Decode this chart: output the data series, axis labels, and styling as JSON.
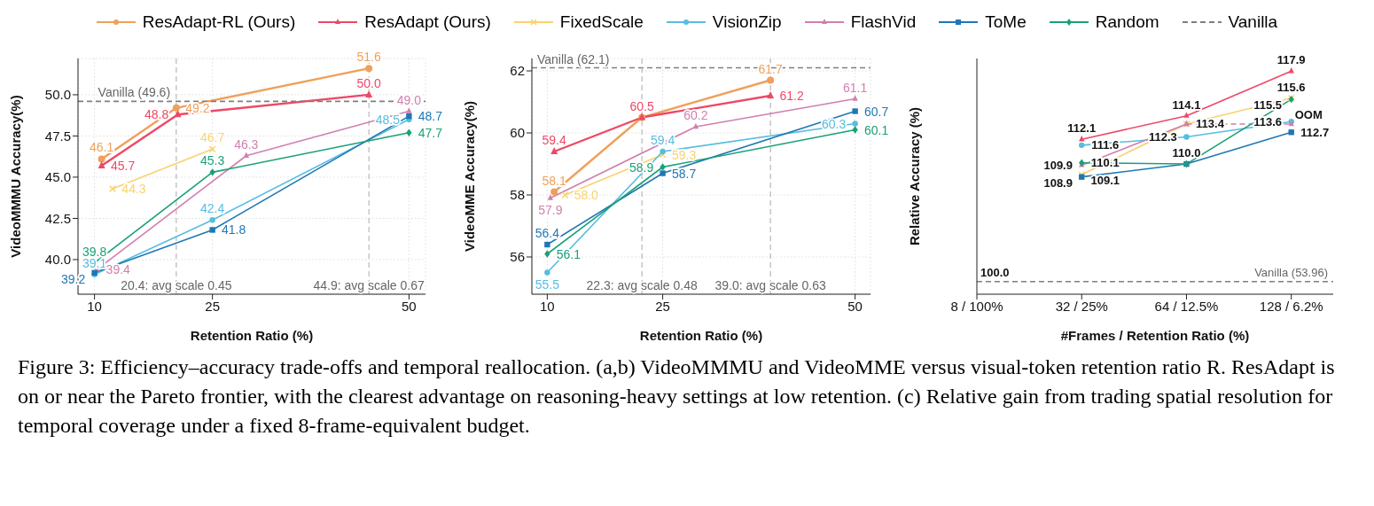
{
  "chart_data": [
    {
      "type": "line",
      "xlabel": "Retention Ratio (%)",
      "ylabel": "VideoMMMU Accuracy(%)",
      "xlim": [
        7.9,
        52.1
      ],
      "ylim": [
        37.9,
        52.2
      ],
      "xticks": [
        10,
        25,
        50
      ],
      "yticks": [
        {
          "value": 40,
          "label": "40.0"
        },
        42.5,
        {
          "value": 45,
          "label": "45.0"
        },
        47.5,
        {
          "value": 50,
          "label": "50.0"
        }
      ],
      "grid": true,
      "legend": "top",
      "series": [
        {
          "name": "ResAdapt-RL (Ours)",
          "color": "#f0a05a",
          "marker": "circle",
          "x": [
            10.9,
            20.4,
            44.9
          ],
          "values": [
            46.1,
            49.2,
            51.6
          ],
          "value_labels": [
            "46.1",
            "49.2",
            "51.6"
          ]
        },
        {
          "name": "ResAdapt (Ours)",
          "color": "#ee4866",
          "marker": "triangle",
          "x": [
            10.9,
            20.6,
            44.9
          ],
          "values": [
            45.7,
            48.8,
            50.0
          ],
          "value_labels": [
            "45.7",
            "48.8",
            "50.0"
          ]
        },
        {
          "name": "FixedScale",
          "color": "#f7d26e",
          "marker": "cross",
          "x": [
            12.3,
            25
          ],
          "values": [
            44.3,
            46.7
          ],
          "value_labels": [
            "44.3",
            "46.7"
          ]
        },
        {
          "name": "VisionZip",
          "color": "#56bde0",
          "marker": "circle",
          "x": [
            10,
            25,
            50
          ],
          "values": [
            39.1,
            42.4,
            48.5
          ],
          "value_labels": [
            "39.1",
            "42.4",
            "48.5"
          ]
        },
        {
          "name": "FlashVid",
          "color": "#d17fb0",
          "marker": "triangle",
          "x": [
            10.3,
            29.3,
            50
          ],
          "values": [
            39.4,
            46.3,
            49.0
          ],
          "value_labels": [
            "39.4",
            "46.3",
            "49.0"
          ]
        },
        {
          "name": "ToMe",
          "color": "#1f77b4",
          "marker": "square",
          "x": [
            10,
            25,
            50
          ],
          "values": [
            39.2,
            41.8,
            48.7
          ],
          "value_labels": [
            "39.2",
            "41.8",
            "48.7"
          ]
        },
        {
          "name": "Random",
          "color": "#1aa079",
          "marker": "diamond",
          "x": [
            10,
            25,
            50
          ],
          "values": [
            39.8,
            45.3,
            47.7
          ],
          "value_labels": [
            "39.8",
            "45.3",
            "47.7"
          ]
        },
        {
          "name": "Vanilla",
          "color": "#7f7f7f",
          "marker": "none",
          "line_style": "dashed",
          "x": [
            7.9,
            52.1
          ],
          "values": [
            49.6,
            49.6
          ]
        }
      ],
      "ref_lines": [
        {
          "axis": "x",
          "value": 20.4,
          "label": "20.4: avg scale 0.45",
          "color": "#aaaaaa",
          "line_style": "dashed"
        },
        {
          "axis": "x",
          "value": 44.9,
          "label": "44.9: avg scale 0.67",
          "color": "#aaaaaa",
          "line_style": "dashed"
        }
      ],
      "annotations": [
        {
          "text": "Vanilla (49.6)",
          "x": 10,
          "y": 49.6
        }
      ]
    },
    {
      "type": "line",
      "xlabel": "Retention Ratio (%)",
      "ylabel": "VideoMME Accuracy(%)",
      "xlim": [
        8,
        52
      ],
      "ylim": [
        54.8,
        62.4
      ],
      "xticks": [
        10,
        25,
        50
      ],
      "yticks": [
        56,
        58,
        60,
        62
      ],
      "grid": true,
      "series": [
        {
          "color": "#f0a05a",
          "marker": "circle",
          "x": [
            10.9,
            22.3,
            39.0
          ],
          "values": [
            58.1,
            60.5,
            61.7
          ],
          "value_labels": [
            "58.1",
            null,
            "61.7"
          ]
        },
        {
          "color": "#ee4866",
          "marker": "triangle",
          "x": [
            10.9,
            22.3,
            39.0
          ],
          "values": [
            59.4,
            60.5,
            61.2
          ],
          "value_labels": [
            "59.4",
            "60.5",
            "61.2"
          ]
        },
        {
          "color": "#f7d26e",
          "marker": "cross",
          "x": [
            12.3,
            25
          ],
          "values": [
            58.0,
            59.3
          ],
          "value_labels": [
            "58.0",
            "59.3"
          ]
        },
        {
          "color": "#56bde0",
          "marker": "circle",
          "x": [
            10,
            25,
            50
          ],
          "values": [
            55.5,
            59.4,
            60.3
          ],
          "value_labels": [
            "55.5",
            "59.4",
            "60.3"
          ]
        },
        {
          "color": "#d17fb0",
          "marker": "triangle",
          "x": [
            10.4,
            29.3,
            50
          ],
          "values": [
            57.9,
            60.2,
            61.1
          ],
          "value_labels": [
            "57.9",
            "60.2",
            "61.1"
          ]
        },
        {
          "color": "#1f77b4",
          "marker": "square",
          "x": [
            10,
            25,
            50
          ],
          "values": [
            56.4,
            58.7,
            60.7
          ],
          "value_labels": [
            "56.4",
            "58.7",
            "60.7"
          ]
        },
        {
          "color": "#1aa079",
          "marker": "diamond",
          "x": [
            10,
            25,
            50
          ],
          "values": [
            56.1,
            58.9,
            60.1
          ],
          "value_labels": [
            "56.1",
            "58.9",
            "60.1"
          ]
        }
      ],
      "ref_lines": [
        {
          "axis": "y",
          "value": 62.1,
          "label": "Vanilla (62.1)",
          "color": "#7f7f7f",
          "line_style": "dashed"
        },
        {
          "axis": "x",
          "value": 22.3,
          "label": "22.3: avg scale 0.48",
          "color": "#aaaaaa",
          "line_style": "dashed"
        },
        {
          "axis": "x",
          "value": 39.0,
          "label": "39.0: avg scale 0.63",
          "color": "#aaaaaa",
          "line_style": "dashed"
        }
      ]
    },
    {
      "type": "line",
      "xlabel": "#Frames / Retention Ratio (%)",
      "ylabel": "Relative Accuracy (%)",
      "categories": [
        "8 / 100%",
        "32 / 25%",
        "64 / 12.5%",
        "128 / 6.2%"
      ],
      "series": [
        {
          "color": "#ee4866",
          "marker": "triangle",
          "values": [
            null,
            112.1,
            114.1,
            117.9
          ],
          "value_labels": [
            null,
            "112.1",
            "114.1",
            "117.9"
          ]
        },
        {
          "color": "#f7d26e",
          "marker": "cross",
          "values": [
            null,
            109.1,
            113.4,
            115.6
          ],
          "value_labels": [
            null,
            "109.1",
            "113.4",
            "115.6"
          ]
        },
        {
          "color": "#56bde0",
          "marker": "circle",
          "values": [
            null,
            111.6,
            112.3,
            113.6
          ],
          "value_labels": [
            null,
            "111.6",
            "112.3",
            "113.6"
          ]
        },
        {
          "color": "#d17fb0",
          "marker": "triangle",
          "values": [
            null,
            109.9,
            113.4,
            null
          ],
          "value_labels": [
            null,
            "109.9",
            null,
            null
          ]
        },
        {
          "color": "#d17fb0",
          "marker": "triangle",
          "line_style": "dashed",
          "values": [
            null,
            null,
            113.4,
            113.4
          ]
        },
        {
          "color": "#1f77b4",
          "marker": "square",
          "values": [
            null,
            108.9,
            110.0,
            112.7
          ],
          "value_labels": [
            null,
            "108.9",
            "110.0",
            "112.7"
          ]
        },
        {
          "color": "#1aa079",
          "marker": "diamond",
          "values": [
            null,
            110.1,
            110.0,
            115.5
          ],
          "value_labels": [
            null,
            "110.1",
            null,
            "115.5"
          ]
        }
      ],
      "ref_lines": [
        {
          "axis": "y",
          "value": 100,
          "label": "Vanilla (53.96)",
          "color": "#7f7f7f",
          "line_style": "dashed"
        }
      ],
      "annotations": [
        {
          "text": "100.0",
          "x": "8 / 100%",
          "y": 100
        },
        {
          "text": "OOM",
          "x": "128 / 6.2%",
          "y": 113.4
        },
        "Figure 3: Efficiency–accuracy trade-offs and temporal reallocation. (a,b) VideoMMMU and VideoMME versus visual-token retention ratio R. ResAdapt is on or near the Pareto frontier, with the clearest advantage on reasoning-heavy settings at low retention. (c) Relative gain from trading spatial resolution for temporal coverage under a fixed 8-frame-equivalent budget."
      ]
    }
  ]
}
